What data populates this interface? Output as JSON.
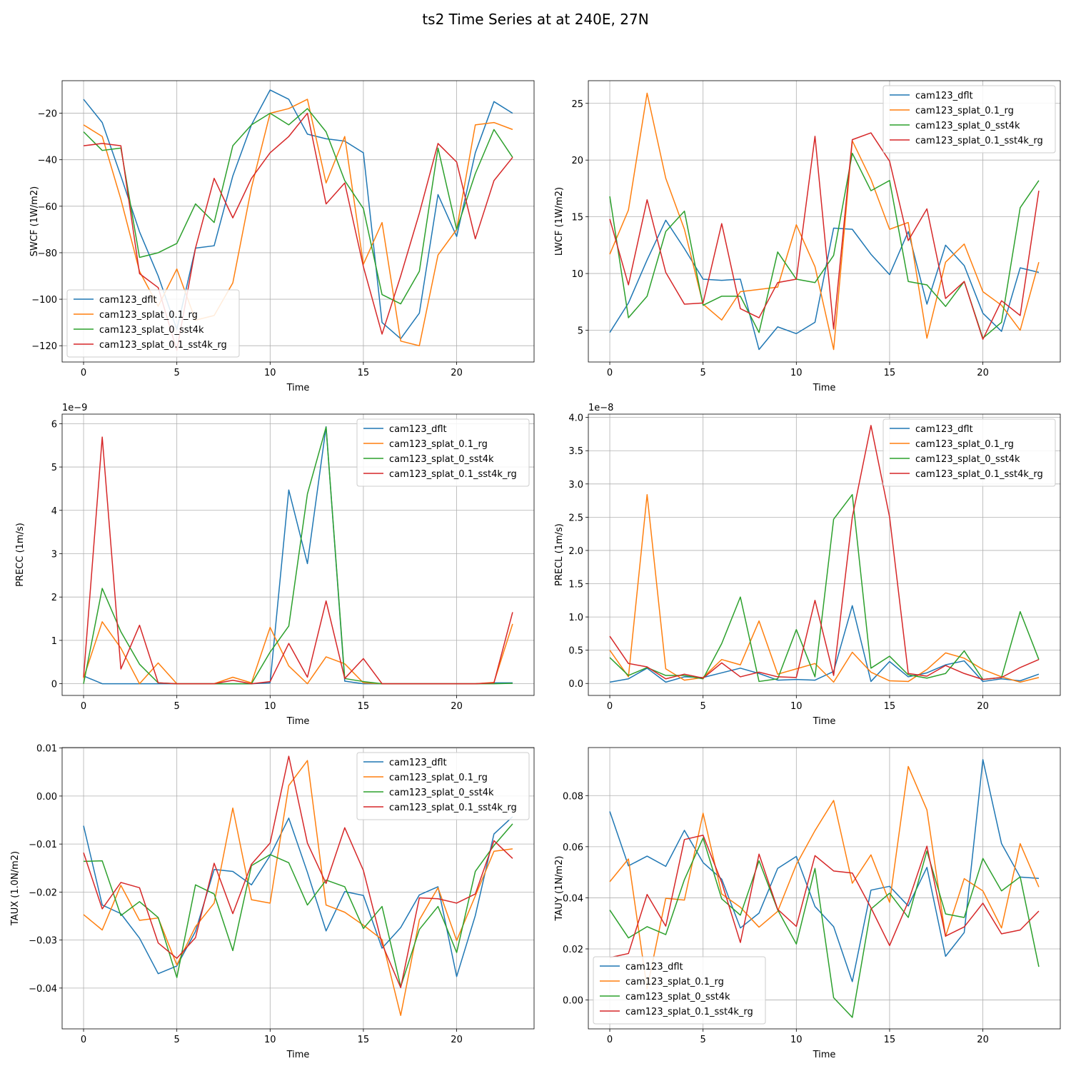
{
  "figure": {
    "suptitle": "ts2 Time Series at at 240E, 27N",
    "series_names": [
      "cam123_dflt",
      "cam123_splat_0.1_rg",
      "cam123_splat_0_sst4k",
      "cam123_splat_0.1_sst4k_rg"
    ],
    "series_colors": [
      "#1f77b4",
      "#ff7f0e",
      "#2ca02c",
      "#d62728"
    ]
  },
  "chart_data": [
    {
      "type": "line",
      "ylabel": "SWCF (1W/m2)",
      "xlabel": "Time",
      "offset_text": "",
      "legend_position": "lower-left",
      "xlim": [
        -1.15,
        24.15
      ],
      "ylim": [
        -127,
        -6
      ],
      "xticks": [
        0,
        5,
        10,
        15,
        20
      ],
      "xtick_labels": [
        "0",
        "5",
        "10",
        "15",
        "20"
      ],
      "yticks": [
        -120,
        -100,
        -80,
        -60,
        -40,
        -20
      ],
      "ytick_labels": [
        "−120",
        "−100",
        "−80",
        "−60",
        "−40",
        "−20"
      ],
      "grid": true,
      "x": [
        0,
        1,
        2,
        3,
        4,
        5,
        6,
        7,
        8,
        9,
        10,
        11,
        12,
        13,
        14,
        15,
        16,
        17,
        18,
        19,
        20,
        21,
        22,
        23
      ],
      "series": [
        {
          "name": "cam123_dflt",
          "values": [
            -14,
            -24,
            -47,
            -71,
            -90,
            -113,
            -78,
            -77,
            -47,
            -25,
            -10,
            -14,
            -29,
            -31,
            -32,
            -37,
            -110,
            -117,
            -106,
            -55,
            -73,
            -37,
            -15,
            -20
          ]
        },
        {
          "name": "cam123_splat_0.1_rg",
          "values": [
            -25,
            -30,
            -57,
            -88,
            -103,
            -87,
            -109,
            -107,
            -93,
            -52,
            -20,
            -18,
            -14,
            -50,
            -30,
            -85,
            -67,
            -118,
            -120,
            -81,
            -70,
            -25,
            -24,
            -27
          ]
        },
        {
          "name": "cam123_splat_0_sst4k",
          "values": [
            -28,
            -36,
            -35,
            -82,
            -80,
            -76,
            -59,
            -67,
            -34,
            -25,
            -20,
            -25,
            -18,
            -28,
            -49,
            -61,
            -98,
            -102,
            -88,
            -35,
            -70,
            -46,
            -27,
            -39
          ]
        },
        {
          "name": "cam123_splat_0.1_sst4k_rg",
          "values": [
            -34,
            -33,
            -34,
            -89,
            -95,
            -122,
            -78,
            -48,
            -65,
            -48,
            -37,
            -30,
            -20,
            -59,
            -50,
            -86,
            -115,
            -90,
            -63,
            -33,
            -41,
            -74,
            -49,
            -39
          ]
        }
      ]
    },
    {
      "type": "line",
      "ylabel": "LWCF (1W/m2)",
      "xlabel": "Time",
      "offset_text": "",
      "legend_position": "upper-right",
      "xlim": [
        -1.15,
        24.15
      ],
      "ylim": [
        2.2,
        27
      ],
      "xticks": [
        0,
        5,
        10,
        15,
        20
      ],
      "xtick_labels": [
        "0",
        "5",
        "10",
        "15",
        "20"
      ],
      "yticks": [
        5,
        10,
        15,
        20,
        25
      ],
      "ytick_labels": [
        "5",
        "10",
        "15",
        "20",
        "25"
      ],
      "grid": true,
      "x": [
        0,
        1,
        2,
        3,
        4,
        5,
        6,
        7,
        8,
        9,
        10,
        11,
        12,
        13,
        14,
        15,
        16,
        17,
        18,
        19,
        20,
        21,
        22,
        23
      ],
      "series": [
        {
          "name": "cam123_dflt",
          "values": [
            4.8,
            7.4,
            11.2,
            14.7,
            12.2,
            9.5,
            9.4,
            9.5,
            3.3,
            5.3,
            4.7,
            5.7,
            14.0,
            13.9,
            11.7,
            9.9,
            13.7,
            7.3,
            12.5,
            10.7,
            6.5,
            4.9,
            10.5,
            10.1
          ]
        },
        {
          "name": "cam123_splat_0.1_rg",
          "values": [
            11.7,
            15.6,
            25.9,
            18.4,
            13.9,
            7.3,
            5.9,
            8.4,
            8.6,
            8.8,
            14.3,
            10.6,
            3.3,
            21.7,
            18.3,
            13.9,
            14.5,
            4.3,
            11.0,
            12.6,
            8.4,
            7.2,
            5.0,
            11.0
          ]
        },
        {
          "name": "cam123_splat_0_sst4k",
          "values": [
            16.8,
            6.1,
            8.0,
            13.7,
            15.5,
            7.2,
            8.0,
            8.0,
            4.8,
            11.9,
            9.5,
            9.2,
            11.6,
            20.6,
            17.3,
            18.2,
            9.3,
            9.0,
            7.1,
            9.3,
            4.3,
            5.7,
            15.8,
            18.2
          ]
        },
        {
          "name": "cam123_splat_0.1_sst4k_rg",
          "values": [
            14.8,
            9.0,
            16.5,
            10.1,
            7.3,
            7.4,
            14.4,
            6.9,
            6.1,
            9.2,
            9.5,
            22.1,
            5.1,
            21.8,
            22.4,
            19.9,
            12.9,
            15.7,
            7.8,
            9.3,
            4.2,
            7.6,
            6.3,
            17.3
          ]
        }
      ]
    },
    {
      "type": "line",
      "ylabel": "PRECC (1m/s)",
      "xlabel": "Time",
      "offset_text": "1e−9",
      "legend_position": "upper-right",
      "xlim": [
        -1.15,
        24.15
      ],
      "ylim": [
        -0.27,
        6.22
      ],
      "xticks": [
        0,
        5,
        10,
        15,
        20
      ],
      "xtick_labels": [
        "0",
        "5",
        "10",
        "15",
        "20"
      ],
      "yticks": [
        0,
        1,
        2,
        3,
        4,
        5,
        6
      ],
      "ytick_labels": [
        "0",
        "1",
        "2",
        "3",
        "4",
        "5",
        "6"
      ],
      "grid": true,
      "x": [
        0,
        1,
        2,
        3,
        4,
        5,
        6,
        7,
        8,
        9,
        10,
        11,
        12,
        13,
        14,
        15,
        16,
        17,
        18,
        19,
        20,
        21,
        22,
        23
      ],
      "series": [
        {
          "name": "cam123_dflt",
          "values": [
            0.18,
            0,
            0,
            0,
            0,
            0,
            0,
            0,
            0,
            0,
            0.02,
            4.47,
            2.77,
            5.93,
            0.06,
            0,
            0,
            0,
            0,
            0,
            0,
            0,
            0.02,
            0.02
          ]
        },
        {
          "name": "cam123_splat_0.1_rg",
          "values": [
            0.13,
            1.43,
            0.82,
            0,
            0.48,
            0,
            0,
            0,
            0.15,
            0.02,
            1.3,
            0.41,
            0,
            0.62,
            0.46,
            0.02,
            0,
            0,
            0,
            0,
            0,
            0,
            0.03,
            1.38
          ]
        },
        {
          "name": "cam123_splat_0_sst4k",
          "values": [
            0,
            2.2,
            1.2,
            0.45,
            0.02,
            0,
            0,
            0,
            0,
            0,
            0.73,
            1.33,
            4.38,
            5.92,
            0.12,
            0.05,
            0,
            0,
            0,
            0,
            0,
            0,
            0,
            0.01
          ]
        },
        {
          "name": "cam123_splat_0.1_sst4k_rg",
          "values": [
            0.15,
            5.69,
            0.34,
            1.35,
            0.02,
            0,
            0,
            0,
            0.08,
            0,
            0.05,
            0.93,
            0.15,
            1.91,
            0.12,
            0.58,
            0,
            0,
            0,
            0,
            0,
            0,
            0.02,
            1.65
          ]
        }
      ]
    },
    {
      "type": "line",
      "ylabel": "PRECL (1m/s)",
      "xlabel": "Time",
      "offset_text": "1e−8",
      "legend_position": "upper-right",
      "xlim": [
        -1.15,
        24.15
      ],
      "ylim": [
        -0.18,
        4.05
      ],
      "xticks": [
        0,
        5,
        10,
        15,
        20
      ],
      "xtick_labels": [
        "0",
        "5",
        "10",
        "15",
        "20"
      ],
      "yticks": [
        0,
        0.5,
        1,
        1.5,
        2,
        2.5,
        3,
        3.5,
        4
      ],
      "ytick_labels": [
        "0.0",
        "0.5",
        "1.0",
        "1.5",
        "2.0",
        "2.5",
        "3.0",
        "3.5",
        "4.0"
      ],
      "grid": true,
      "x": [
        0,
        1,
        2,
        3,
        4,
        5,
        6,
        7,
        8,
        9,
        10,
        11,
        12,
        13,
        14,
        15,
        16,
        17,
        18,
        19,
        20,
        21,
        22,
        23
      ],
      "series": [
        {
          "name": "cam123_dflt",
          "values": [
            0.02,
            0.07,
            0.23,
            0.02,
            0.1,
            0.09,
            0.16,
            0.23,
            0.15,
            0.05,
            0.06,
            0.05,
            0.18,
            1.17,
            0.03,
            0.33,
            0.1,
            0.16,
            0.28,
            0.34,
            0.03,
            0.07,
            0.04,
            0.14
          ]
        },
        {
          "name": "cam123_splat_0.1_rg",
          "values": [
            0.5,
            0.1,
            2.84,
            0.22,
            0.05,
            0.09,
            0.36,
            0.28,
            0.94,
            0.14,
            0.22,
            0.3,
            0.02,
            0.47,
            0.17,
            0.04,
            0.03,
            0.21,
            0.46,
            0.38,
            0.21,
            0.1,
            0.02,
            0.09
          ]
        },
        {
          "name": "cam123_splat_0_sst4k",
          "values": [
            0.39,
            0.12,
            0.24,
            0.12,
            0.12,
            0.07,
            0.6,
            1.3,
            0.03,
            0.07,
            0.81,
            0.1,
            2.47,
            2.84,
            0.23,
            0.41,
            0.13,
            0.08,
            0.15,
            0.49,
            0.06,
            0.09,
            1.08,
            0.36
          ]
        },
        {
          "name": "cam123_splat_0.1_sst4k_rg",
          "values": [
            0.71,
            0.3,
            0.25,
            0.07,
            0.14,
            0.08,
            0.31,
            0.1,
            0.17,
            0.1,
            0.09,
            1.25,
            0.12,
            2.5,
            3.88,
            2.5,
            0.15,
            0.11,
            0.27,
            0.15,
            0.06,
            0.09,
            0.24,
            0.36
          ]
        }
      ]
    },
    {
      "type": "line",
      "ylabel": "TAUX (1.0N/m2)",
      "xlabel": "Time",
      "offset_text": "",
      "legend_position": "upper-right",
      "xlim": [
        -1.15,
        24.15
      ],
      "ylim": [
        -0.0485,
        0.0101
      ],
      "xticks": [
        0,
        5,
        10,
        15,
        20
      ],
      "xtick_labels": [
        "0",
        "5",
        "10",
        "15",
        "20"
      ],
      "yticks": [
        -0.04,
        -0.03,
        -0.02,
        -0.01,
        0.0,
        0.01
      ],
      "ytick_labels": [
        "−0.04",
        "−0.03",
        "−0.02",
        "−0.01",
        "0.00",
        "0.01"
      ],
      "grid": true,
      "x": [
        0,
        1,
        2,
        3,
        4,
        5,
        6,
        7,
        8,
        9,
        10,
        11,
        12,
        13,
        14,
        15,
        16,
        17,
        18,
        19,
        20,
        21,
        22,
        23
      ],
      "series": [
        {
          "name": "cam123_dflt",
          "values": [
            -0.0062,
            -0.0227,
            -0.0245,
            -0.0296,
            -0.037,
            -0.0354,
            -0.0282,
            -0.0153,
            -0.0157,
            -0.0185,
            -0.0124,
            -0.0046,
            -0.0159,
            -0.0281,
            -0.0199,
            -0.0207,
            -0.0317,
            -0.0274,
            -0.0206,
            -0.0189,
            -0.0376,
            -0.0249,
            -0.0079,
            -0.0043
          ]
        },
        {
          "name": "cam123_splat_0.1_rg",
          "values": [
            -0.0247,
            -0.0279,
            -0.0186,
            -0.0259,
            -0.0254,
            -0.0352,
            -0.0272,
            -0.0223,
            -0.0025,
            -0.0216,
            -0.0223,
            0.0022,
            0.0074,
            -0.0227,
            -0.0242,
            -0.0269,
            -0.0299,
            -0.0457,
            -0.0258,
            -0.0191,
            -0.0301,
            -0.0208,
            -0.0115,
            -0.011
          ]
        },
        {
          "name": "cam123_splat_0_sst4k",
          "values": [
            -0.0136,
            -0.0135,
            -0.0249,
            -0.022,
            -0.0253,
            -0.0378,
            -0.0185,
            -0.0204,
            -0.0322,
            -0.0145,
            -0.0122,
            -0.0139,
            -0.0227,
            -0.0175,
            -0.0189,
            -0.0276,
            -0.023,
            -0.0397,
            -0.0278,
            -0.023,
            -0.0326,
            -0.0157,
            -0.0103,
            -0.0058
          ]
        },
        {
          "name": "cam123_splat_0.1_sst4k_rg",
          "values": [
            -0.0118,
            -0.0235,
            -0.018,
            -0.0191,
            -0.0306,
            -0.0338,
            -0.0295,
            -0.014,
            -0.0245,
            -0.0142,
            -0.0098,
            0.0083,
            -0.0098,
            -0.0182,
            -0.0066,
            -0.0155,
            -0.0308,
            -0.0399,
            -0.0212,
            -0.0214,
            -0.0223,
            -0.0204,
            -0.0093,
            -0.013
          ]
        }
      ]
    },
    {
      "type": "line",
      "ylabel": "TAUY (1N/m2)",
      "xlabel": "Time",
      "offset_text": "",
      "legend_position": "lower-left",
      "xlim": [
        -1.15,
        24.15
      ],
      "ylim": [
        -0.0113,
        0.0988
      ],
      "xticks": [
        0,
        5,
        10,
        15,
        20
      ],
      "xtick_labels": [
        "0",
        "5",
        "10",
        "15",
        "20"
      ],
      "yticks": [
        0.0,
        0.02,
        0.04,
        0.06,
        0.08
      ],
      "ytick_labels": [
        "0.00",
        "0.02",
        "0.04",
        "0.06",
        "0.08"
      ],
      "grid": true,
      "x": [
        0,
        1,
        2,
        3,
        4,
        5,
        6,
        7,
        8,
        9,
        10,
        11,
        12,
        13,
        14,
        15,
        16,
        17,
        18,
        19,
        20,
        21,
        22,
        23
      ],
      "series": [
        {
          "name": "cam123_dflt",
          "values": [
            0.0738,
            0.0525,
            0.0563,
            0.0523,
            0.0664,
            0.0538,
            0.0473,
            0.0282,
            0.034,
            0.0515,
            0.0562,
            0.0366,
            0.0287,
            0.0072,
            0.043,
            0.0445,
            0.0368,
            0.0519,
            0.0171,
            0.0264,
            0.0941,
            0.0612,
            0.0481,
            0.0476
          ]
        },
        {
          "name": "cam123_splat_0.1_rg",
          "values": [
            0.0463,
            0.0552,
            0.0044,
            0.0398,
            0.0391,
            0.0731,
            0.0415,
            0.0363,
            0.0285,
            0.0347,
            0.053,
            0.0663,
            0.0781,
            0.0457,
            0.0568,
            0.0382,
            0.0914,
            0.0744,
            0.0249,
            0.0475,
            0.0427,
            0.0282,
            0.0612,
            0.0442
          ]
        },
        {
          "name": "cam123_splat_0_sst4k",
          "values": [
            0.0352,
            0.0243,
            0.0287,
            0.0256,
            0.0471,
            0.0634,
            0.0396,
            0.0332,
            0.0545,
            0.0353,
            0.0219,
            0.0515,
            0.0009,
            -0.0068,
            0.0356,
            0.0418,
            0.0323,
            0.0583,
            0.0337,
            0.0323,
            0.0554,
            0.0427,
            0.0482,
            0.013
          ]
        },
        {
          "name": "cam123_splat_0.1_sst4k_rg",
          "values": [
            0.0166,
            0.0182,
            0.0413,
            0.0289,
            0.0628,
            0.0645,
            0.046,
            0.0225,
            0.0571,
            0.0355,
            0.0288,
            0.0565,
            0.0505,
            0.0497,
            0.0361,
            0.0213,
            0.0385,
            0.0602,
            0.025,
            0.0286,
            0.0379,
            0.0259,
            0.0274,
            0.0348
          ]
        }
      ]
    }
  ]
}
